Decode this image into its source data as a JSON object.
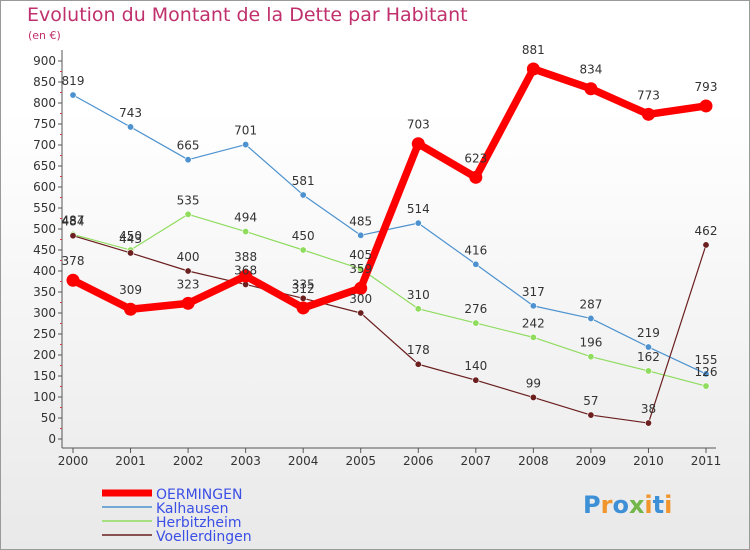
{
  "header": {
    "title": "Evolution du Montant de la Dette par Habitant",
    "subtitle": "(en €)"
  },
  "colors": {
    "OERMINGEN": "#ff0000",
    "Kalhausen": "#4d92cf",
    "Herbitzheim": "#8fdc5e",
    "Voellerdingen": "#6b1f1f",
    "legend_text": "#3b4fe6",
    "title": "#c0306c"
  },
  "logo": {
    "text": "Proxiti"
  },
  "chart_data": {
    "type": "line",
    "title": "Evolution du Montant de la Dette par Habitant",
    "subtitle": "(en €)",
    "xlabel": "",
    "ylabel": "",
    "x": [
      "2000",
      "2001",
      "2002",
      "2003",
      "2004",
      "2005",
      "2006",
      "2007",
      "2008",
      "2009",
      "2010",
      "2011"
    ],
    "ylim": [
      0,
      900
    ],
    "yticks": [
      0,
      50,
      100,
      150,
      200,
      250,
      300,
      350,
      400,
      450,
      500,
      550,
      600,
      650,
      700,
      750,
      800,
      850,
      900
    ],
    "grid": false,
    "legend_position": "bottom-left",
    "series": [
      {
        "name": "OERMINGEN",
        "values": [
          378,
          309,
          323,
          388,
          312,
          359,
          703,
          623,
          881,
          834,
          773,
          793
        ]
      },
      {
        "name": "Kalhausen",
        "values": [
          819,
          743,
          665,
          701,
          581,
          485,
          514,
          416,
          317,
          287,
          219,
          155
        ]
      },
      {
        "name": "Herbitzheim",
        "values": [
          487,
          450,
          535,
          494,
          450,
          405,
          310,
          276,
          242,
          196,
          162,
          126
        ]
      },
      {
        "name": "Voellerdingen",
        "values": [
          484,
          443,
          400,
          368,
          335,
          300,
          178,
          140,
          99,
          57,
          38,
          462
        ]
      }
    ]
  }
}
